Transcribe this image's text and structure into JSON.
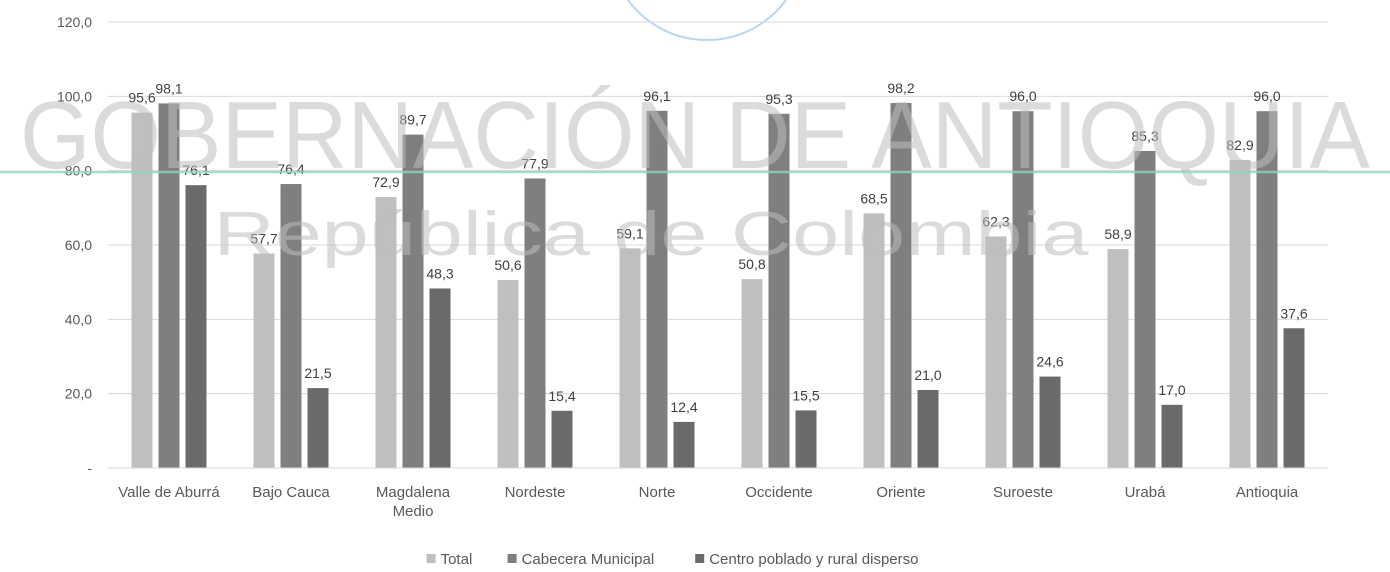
{
  "watermark": {
    "line1": "GOBERNACIÓN DE ANTIOQUIA",
    "line2": "República de Colombia",
    "accent_color": "#8fd3c4",
    "circle_color": "#7fb4e6"
  },
  "chart_data": {
    "type": "bar",
    "title": "",
    "xlabel": "",
    "ylabel": "",
    "ylim": [
      0,
      120
    ],
    "yticks": [
      0,
      20,
      40,
      60,
      80,
      100,
      120
    ],
    "ytick_labels": [
      "-",
      "20,0",
      "40,0",
      "60,0",
      "80,0",
      "100,0",
      "120,0"
    ],
    "grid": true,
    "legend_position": "bottom",
    "categories": [
      [
        "Valle de Aburrá"
      ],
      [
        "Bajo Cauca"
      ],
      [
        "Magdalena",
        "Medio"
      ],
      [
        "Nordeste"
      ],
      [
        "Norte"
      ],
      [
        "Occidente"
      ],
      [
        "Oriente"
      ],
      [
        "Suroeste"
      ],
      [
        "Urabá"
      ],
      [
        "Antioquia"
      ]
    ],
    "series": [
      {
        "name": "Total",
        "color": "#bfbfbf",
        "values": [
          95.6,
          57.7,
          72.9,
          50.6,
          59.1,
          50.8,
          68.5,
          62.3,
          58.9,
          82.9
        ],
        "labels": [
          "95,6",
          "57,7",
          "72,9",
          "50,6",
          "59,1",
          "50,8",
          "68,5",
          "62,3",
          "58,9",
          "82,9"
        ]
      },
      {
        "name": "Cabecera Municipal",
        "color": "#7f7f7f",
        "values": [
          98.1,
          76.4,
          89.7,
          77.9,
          96.1,
          95.3,
          98.2,
          96.0,
          85.3,
          96.0
        ],
        "labels": [
          "98,1",
          "76,4",
          "89,7",
          "77,9",
          "96,1",
          "95,3",
          "98,2",
          "96,0",
          "85,3",
          "96,0"
        ]
      },
      {
        "name": "Centro poblado y rural disperso",
        "color": "#6a6a6a",
        "values": [
          76.1,
          21.5,
          48.3,
          15.4,
          12.4,
          15.5,
          21.0,
          24.6,
          17.0,
          37.6
        ],
        "labels": [
          "76,1",
          "21,5",
          "48,3",
          "15,4",
          "12,4",
          "15,5",
          "21,0",
          "24,6",
          "17,0",
          "37,6"
        ]
      }
    ]
  }
}
